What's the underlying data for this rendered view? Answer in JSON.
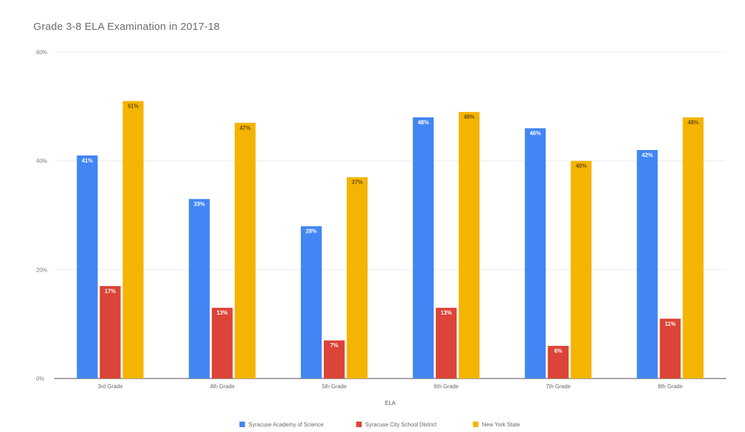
{
  "chart_data": {
    "type": "bar",
    "title": "Grade 3-8 ELA Examination in 2017-18",
    "xlabel": "ELA",
    "ylabel": "",
    "ylim": [
      0,
      60
    ],
    "yticks": [
      "0%",
      "20%",
      "40%",
      "60%"
    ],
    "categories": [
      "3rd Grade",
      "4th Grade",
      "5th Grade",
      "6th Grade",
      "7th Grade",
      "8th Grade"
    ],
    "series": [
      {
        "name": "Syracuse Academy of Science",
        "color": "#4285f4",
        "values": [
          41,
          33,
          28,
          48,
          46,
          42
        ],
        "labels": [
          "41%",
          "33%",
          "28%",
          "48%",
          "46%",
          "42%"
        ]
      },
      {
        "name": "Syracuse City School District",
        "color": "#db4437",
        "values": [
          17,
          13,
          7,
          13,
          6,
          11
        ],
        "labels": [
          "17%",
          "13%",
          "7%",
          "13%",
          "6%",
          "11%"
        ]
      },
      {
        "name": "New York State",
        "color": "#f4b400",
        "values": [
          51,
          47,
          37,
          49,
          40,
          48
        ],
        "labels": [
          "51%",
          "47%",
          "37%",
          "49%",
          "40%",
          "48%"
        ]
      }
    ],
    "grid": true,
    "legend_position": "bottom"
  }
}
